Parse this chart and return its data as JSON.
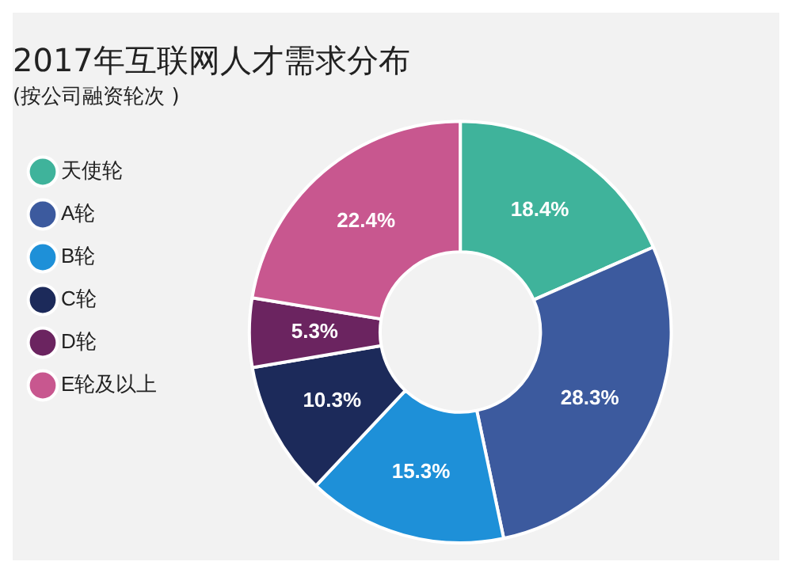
{
  "chart_data": {
    "type": "donut",
    "title": "2017年互联网人才需求分布",
    "subtitle": "(按公司融资轮次 )",
    "categories": [
      "天使轮",
      "A轮",
      "B轮",
      "C轮",
      "D轮",
      "E轮及以上"
    ],
    "values": [
      18.4,
      28.3,
      15.3,
      10.3,
      5.3,
      22.4
    ],
    "colors": [
      "#3fb39b",
      "#3c5a9e",
      "#1e90d8",
      "#1c2a5a",
      "#6b2460",
      "#c8578f"
    ],
    "value_labels": [
      "18.4%",
      "28.3%",
      "15.3%",
      "10.3%",
      "5.3%",
      "22.4%"
    ],
    "legend": "left"
  }
}
